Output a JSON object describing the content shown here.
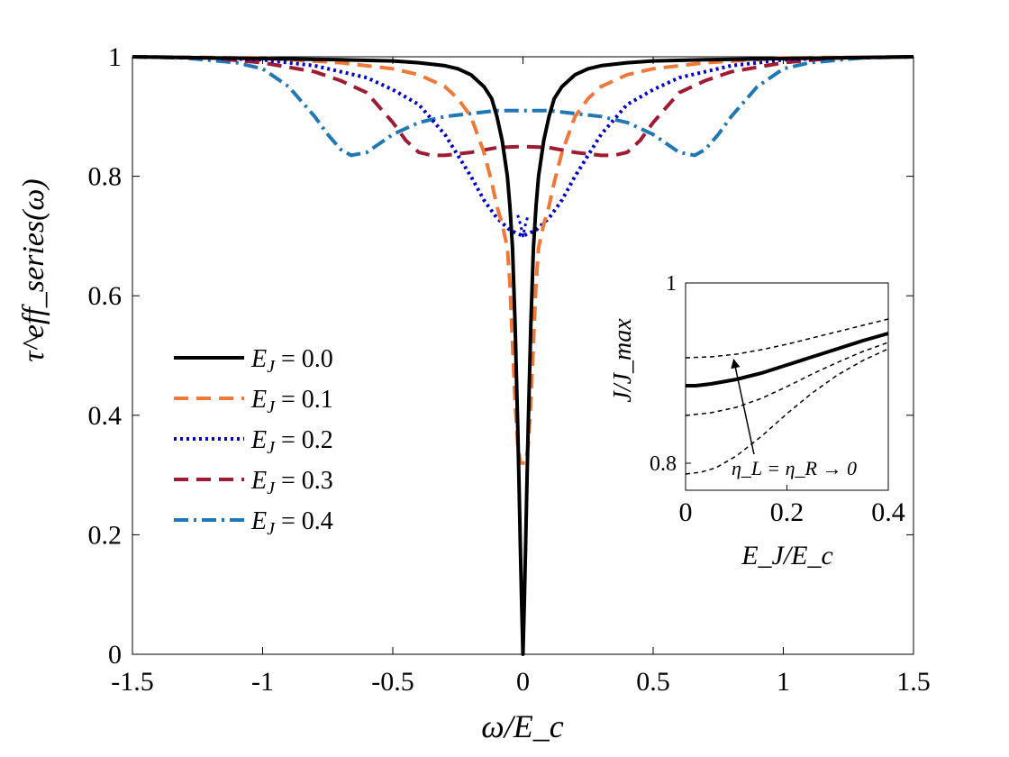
{
  "chart_data": [
    {
      "type": "line",
      "title": "",
      "xlabel": "ω/E_c",
      "ylabel": "τ^eff_series(ω)",
      "xlim": [
        -1.5,
        1.5
      ],
      "ylim": [
        0,
        1
      ],
      "xticks": [
        -1.5,
        -1,
        -0.5,
        0,
        0.5,
        1,
        1.5
      ],
      "xtick_labels": [
        "-1.5",
        "-1",
        "-0.5",
        "0",
        "0.5",
        "1",
        "1.5"
      ],
      "yticks": [
        0,
        0.2,
        0.4,
        0.6,
        0.8,
        1
      ],
      "ytick_labels": [
        "0",
        "0.2",
        "0.4",
        "0.6",
        "0.8",
        "1"
      ],
      "legend_position": "center-left",
      "series": [
        {
          "name": "E_J = 0.0",
          "legend_label": "E_J = 0.0",
          "color": "#000000",
          "style": "solid",
          "x": [
            -1.5,
            -1.0,
            -0.7,
            -0.5,
            -0.4,
            -0.3,
            -0.25,
            -0.2,
            -0.15,
            -0.12,
            -0.1,
            -0.08,
            -0.06,
            -0.05,
            -0.04,
            -0.03,
            -0.02,
            -0.015,
            -0.01,
            -0.005,
            0,
            0.005,
            0.01,
            0.015,
            0.02,
            0.03,
            0.04,
            0.05,
            0.06,
            0.08,
            0.1,
            0.12,
            0.15,
            0.2,
            0.25,
            0.3,
            0.4,
            0.5,
            0.7,
            1.0,
            1.5
          ],
          "y": [
            1.0,
            0.997,
            0.995,
            0.993,
            0.99,
            0.985,
            0.98,
            0.97,
            0.95,
            0.93,
            0.9,
            0.86,
            0.8,
            0.75,
            0.68,
            0.55,
            0.38,
            0.28,
            0.18,
            0.08,
            0.0,
            0.08,
            0.18,
            0.28,
            0.38,
            0.55,
            0.68,
            0.75,
            0.8,
            0.86,
            0.9,
            0.93,
            0.95,
            0.97,
            0.98,
            0.985,
            0.99,
            0.993,
            0.995,
            0.997,
            1.0
          ]
        },
        {
          "name": "E_J = 0.1",
          "legend_label": "E_J = 0.1",
          "color": "#f07838",
          "style": "dashed",
          "x": [
            -1.5,
            -1.0,
            -0.7,
            -0.5,
            -0.4,
            -0.3,
            -0.25,
            -0.2,
            -0.15,
            -0.12,
            -0.1,
            -0.08,
            -0.06,
            -0.05,
            -0.04,
            -0.03,
            -0.02,
            -0.01,
            0,
            0.01,
            0.02,
            0.03,
            0.04,
            0.05,
            0.06,
            0.08,
            0.1,
            0.12,
            0.15,
            0.2,
            0.25,
            0.3,
            0.4,
            0.5,
            0.7,
            1.0,
            1.5
          ],
          "y": [
            1.0,
            0.998,
            0.99,
            0.98,
            0.97,
            0.95,
            0.93,
            0.9,
            0.84,
            0.79,
            0.75,
            0.72,
            0.68,
            0.62,
            0.52,
            0.42,
            0.35,
            0.32,
            0.32,
            0.32,
            0.35,
            0.42,
            0.52,
            0.62,
            0.68,
            0.72,
            0.75,
            0.79,
            0.84,
            0.9,
            0.93,
            0.95,
            0.97,
            0.98,
            0.99,
            0.998,
            1.0
          ]
        },
        {
          "name": "E_J = 0.2",
          "legend_label": "E_J = 0.2",
          "color": "#0000cc",
          "style": "dotted",
          "x": [
            -1.5,
            -1.2,
            -1.0,
            -0.8,
            -0.6,
            -0.5,
            -0.4,
            -0.3,
            -0.2,
            -0.15,
            -0.1,
            -0.05,
            0,
            0.05,
            0.1,
            0.15,
            0.2,
            0.3,
            0.4,
            0.5,
            0.6,
            0.8,
            1.0,
            1.2,
            1.5
          ],
          "y": [
            1.0,
            0.998,
            0.995,
            0.985,
            0.965,
            0.945,
            0.92,
            0.87,
            0.8,
            0.76,
            0.73,
            0.71,
            0.7,
            0.71,
            0.73,
            0.76,
            0.8,
            0.87,
            0.92,
            0.945,
            0.965,
            0.985,
            0.995,
            0.998,
            1.0
          ],
          "x2": [
            -0.02,
            -0.01,
            0,
            0.01,
            0.02
          ],
          "y2": [
            0.735,
            0.72,
            0.7,
            0.72,
            0.735
          ]
        },
        {
          "name": "E_J = 0.3",
          "legend_label": "E_J = 0.3",
          "color": "#9e1b32",
          "style": "dashed",
          "x": [
            -1.5,
            -1.2,
            -1.0,
            -0.8,
            -0.7,
            -0.6,
            -0.5,
            -0.45,
            -0.4,
            -0.35,
            -0.3,
            -0.2,
            -0.1,
            0,
            0.1,
            0.2,
            0.3,
            0.35,
            0.4,
            0.45,
            0.5,
            0.6,
            0.7,
            0.8,
            1.0,
            1.2,
            1.5
          ],
          "y": [
            1.0,
            0.998,
            0.99,
            0.975,
            0.96,
            0.94,
            0.89,
            0.86,
            0.84,
            0.835,
            0.835,
            0.84,
            0.848,
            0.85,
            0.848,
            0.84,
            0.835,
            0.835,
            0.84,
            0.86,
            0.89,
            0.94,
            0.96,
            0.975,
            0.99,
            0.998,
            1.0
          ]
        },
        {
          "name": "E_J = 0.4",
          "legend_label": "E_J = 0.4",
          "color": "#1f77b4",
          "style": "dashdot",
          "x": [
            -1.5,
            -1.3,
            -1.1,
            -1.0,
            -0.9,
            -0.8,
            -0.75,
            -0.7,
            -0.66,
            -0.6,
            -0.55,
            -0.5,
            -0.4,
            -0.3,
            -0.2,
            -0.1,
            0,
            0.1,
            0.2,
            0.3,
            0.4,
            0.5,
            0.55,
            0.6,
            0.66,
            0.7,
            0.75,
            0.8,
            0.9,
            1.0,
            1.1,
            1.3,
            1.5
          ],
          "y": [
            1.0,
            0.998,
            0.99,
            0.98,
            0.95,
            0.9,
            0.87,
            0.845,
            0.835,
            0.84,
            0.855,
            0.87,
            0.89,
            0.9,
            0.905,
            0.91,
            0.91,
            0.91,
            0.905,
            0.9,
            0.89,
            0.87,
            0.855,
            0.84,
            0.835,
            0.845,
            0.87,
            0.9,
            0.95,
            0.98,
            0.99,
            0.998,
            1.0
          ]
        }
      ]
    },
    {
      "type": "line",
      "title": "",
      "xlabel": "E_J/E_c",
      "ylabel": "J/J_max",
      "xlim": [
        0,
        0.4
      ],
      "ylim": [
        0.77,
        1
      ],
      "xticks": [
        0,
        0.2,
        0.4
      ],
      "xtick_labels": [
        "0",
        "0.2",
        "0.4"
      ],
      "yticks": [
        0.8,
        1
      ],
      "ytick_labels": [
        "0.8",
        "1"
      ],
      "annotation": "η_L = η_R → 0",
      "series": [
        {
          "name": "bold",
          "color": "#000000",
          "style": "solid",
          "width": 4,
          "x": [
            0,
            0.02,
            0.05,
            0.1,
            0.15,
            0.2,
            0.25,
            0.3,
            0.35,
            0.4
          ],
          "y": [
            0.886,
            0.886,
            0.888,
            0.893,
            0.9,
            0.909,
            0.918,
            0.927,
            0.936,
            0.944
          ]
        },
        {
          "name": "dashed-1",
          "color": "#000000",
          "style": "dashed",
          "width": 1.5,
          "x": [
            0,
            0.05,
            0.1,
            0.15,
            0.2,
            0.25,
            0.3,
            0.35,
            0.4
          ],
          "y": [
            0.917,
            0.918,
            0.921,
            0.926,
            0.932,
            0.939,
            0.946,
            0.953,
            0.96
          ]
        },
        {
          "name": "dashed-2",
          "color": "#000000",
          "style": "dashed",
          "width": 1.5,
          "x": [
            0,
            0.05,
            0.1,
            0.15,
            0.2,
            0.25,
            0.3,
            0.35,
            0.4
          ],
          "y": [
            0.853,
            0.856,
            0.862,
            0.872,
            0.885,
            0.899,
            0.912,
            0.924,
            0.934
          ]
        },
        {
          "name": "dashed-3",
          "color": "#000000",
          "style": "dashed",
          "width": 1.5,
          "x": [
            0,
            0.03,
            0.06,
            0.1,
            0.15,
            0.2,
            0.25,
            0.3,
            0.35,
            0.4
          ],
          "y": [
            0.788,
            0.79,
            0.795,
            0.808,
            0.83,
            0.855,
            0.878,
            0.898,
            0.914,
            0.927
          ]
        }
      ],
      "arrow": {
        "x_start": 0.135,
        "y_start": 0.81,
        "x_end": 0.095,
        "y_end": 0.915
      }
    }
  ]
}
